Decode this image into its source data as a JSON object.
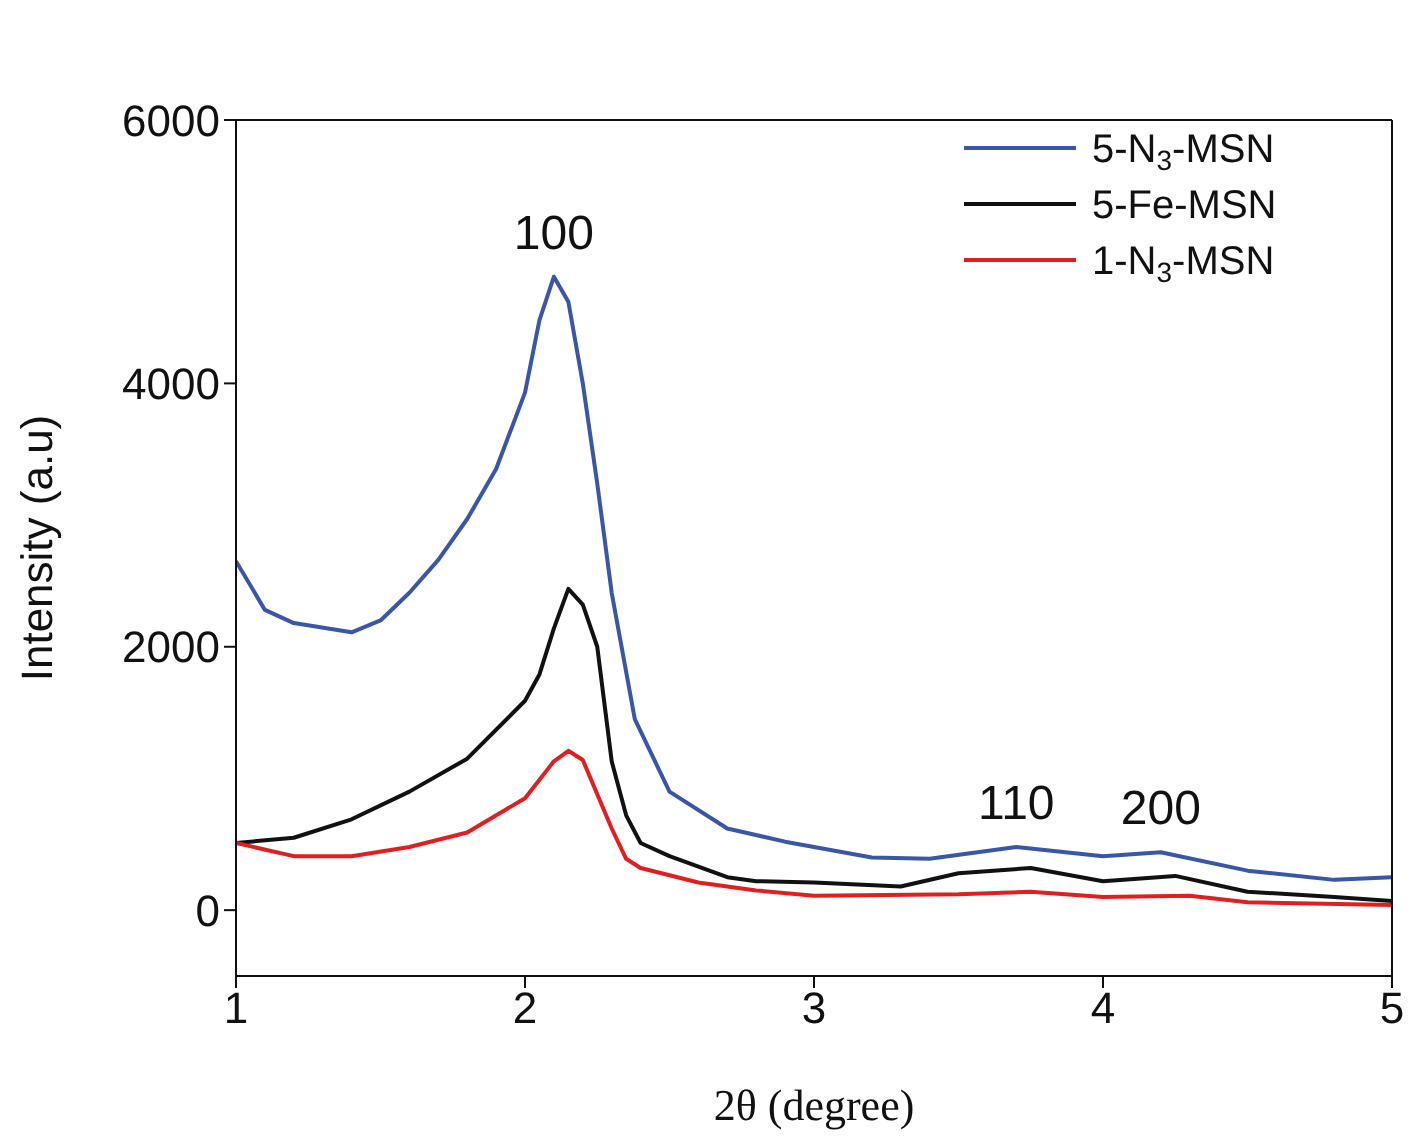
{
  "chart_data": {
    "type": "line",
    "xlabel": "2θ (degree)",
    "ylabel": "Intensity (a.u)",
    "xlim": [
      1,
      5
    ],
    "xticks": [
      1,
      2,
      3,
      4,
      5
    ],
    "ylim": [
      -500,
      6000
    ],
    "yticks": [
      0,
      2000,
      4000,
      6000
    ],
    "grid": false,
    "legend": "top right",
    "marker": "none",
    "line_style": "solid",
    "annotations": [
      {
        "text": "100",
        "x": 2.1,
        "y": 4810
      },
      {
        "text": "110",
        "x": 3.7,
        "y": 480
      },
      {
        "text": "200",
        "x": 4.2,
        "y": 440
      }
    ],
    "series": [
      {
        "name": "5-N$_{3}$-MSN",
        "color": "#3a56a8",
        "x": [
          1.0,
          1.1,
          1.2,
          1.4,
          1.5,
          1.6,
          1.7,
          1.8,
          1.9,
          2.0,
          2.05,
          2.1,
          2.15,
          2.2,
          2.25,
          2.3,
          2.38,
          2.5,
          2.7,
          2.9,
          3.0,
          3.2,
          3.4,
          3.7,
          4.0,
          4.2,
          4.5,
          4.8,
          5.0
        ],
        "values": [
          2650,
          2280,
          2180,
          2110,
          2200,
          2410,
          2660,
          2970,
          3350,
          3930,
          4480,
          4810,
          4620,
          4000,
          3240,
          2410,
          1450,
          900,
          620,
          520,
          480,
          400,
          390,
          480,
          410,
          440,
          300,
          230,
          250
        ]
      },
      {
        "name": "5-Fe-MSN",
        "color": "#111111",
        "x": [
          1.0,
          1.2,
          1.4,
          1.6,
          1.8,
          2.0,
          2.05,
          2.1,
          2.15,
          2.2,
          2.25,
          2.3,
          2.35,
          2.4,
          2.5,
          2.7,
          2.8,
          3.0,
          3.3,
          3.5,
          3.75,
          4.0,
          4.25,
          4.5,
          4.8,
          5.0
        ],
        "values": [
          510,
          550,
          690,
          900,
          1150,
          1590,
          1790,
          2140,
          2440,
          2320,
          2000,
          1130,
          720,
          510,
          410,
          250,
          220,
          210,
          180,
          280,
          320,
          220,
          260,
          140,
          100,
          70
        ]
      },
      {
        "name": "1-N$_{3}$-MSN",
        "color": "#e02020",
        "x": [
          1.0,
          1.2,
          1.4,
          1.6,
          1.8,
          2.0,
          2.1,
          2.15,
          2.2,
          2.3,
          2.35,
          2.4,
          2.6,
          2.8,
          3.0,
          3.5,
          3.75,
          4.0,
          4.3,
          4.5,
          5.0
        ],
        "values": [
          510,
          410,
          410,
          480,
          590,
          850,
          1130,
          1210,
          1140,
          620,
          390,
          320,
          210,
          150,
          110,
          120,
          140,
          100,
          110,
          60,
          40
        ]
      }
    ]
  }
}
